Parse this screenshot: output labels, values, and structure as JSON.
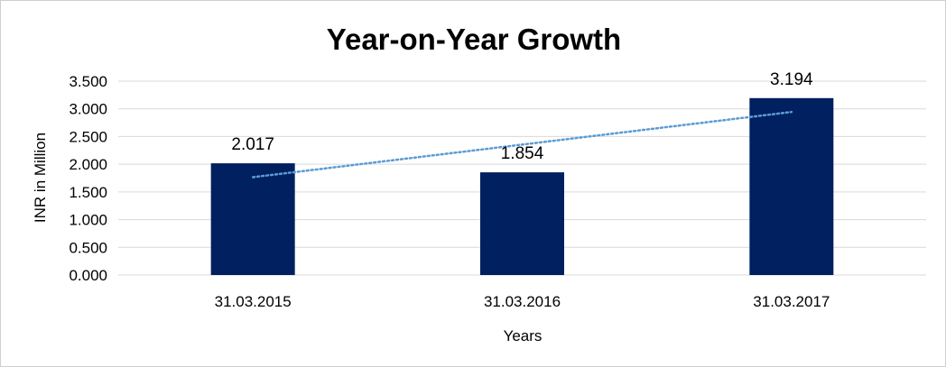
{
  "chart_data": {
    "type": "bar",
    "title": "Year-on-Year Growth",
    "xlabel": "Years",
    "ylabel": "INR in Million",
    "categories": [
      "31.03.2015",
      "31.03.2016",
      "31.03.2017"
    ],
    "series": [
      {
        "values": [
          2.017,
          1.854,
          3.194
        ],
        "color": "#002060"
      }
    ],
    "data_labels": [
      "2.017",
      "1.854",
      "3.194"
    ],
    "y_ticks": [
      "0.000",
      "0.500",
      "1.000",
      "1.500",
      "2.000",
      "2.500",
      "3.000",
      "3.500"
    ],
    "y_tick_values": [
      0,
      0.5,
      1,
      1.5,
      2,
      2.5,
      3,
      3.5
    ],
    "ylim": [
      0,
      3.5
    ],
    "grid": true,
    "gridline_color": "#d9d9d9",
    "legend": false,
    "trendline": {
      "type": "linear",
      "style": "dotted",
      "color": "#5b9bd5"
    }
  }
}
